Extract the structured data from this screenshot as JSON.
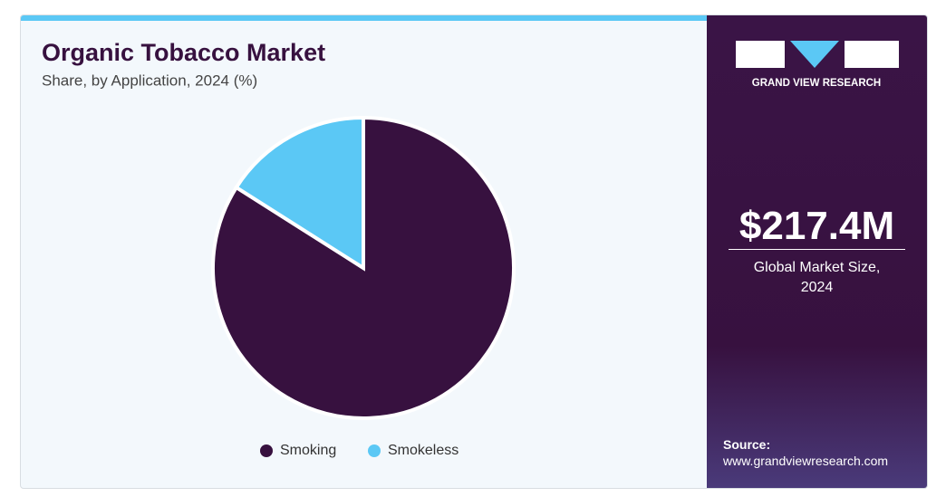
{
  "chart_data": {
    "type": "pie",
    "title": "Organic Tobacco Market",
    "subtitle": "Share, by Application, 2024 (%)",
    "categories": [
      "Smoking",
      "Smokeless"
    ],
    "values": [
      84,
      16
    ],
    "colors": [
      "#37113f",
      "#5bc8f5"
    ]
  },
  "panel": {
    "brand": "GRAND VIEW RESEARCH",
    "market_size": "$217.4M",
    "market_label": "Global Market Size, 2024",
    "source_label": "Source:",
    "source_url": "www.grandviewresearch.com"
  }
}
